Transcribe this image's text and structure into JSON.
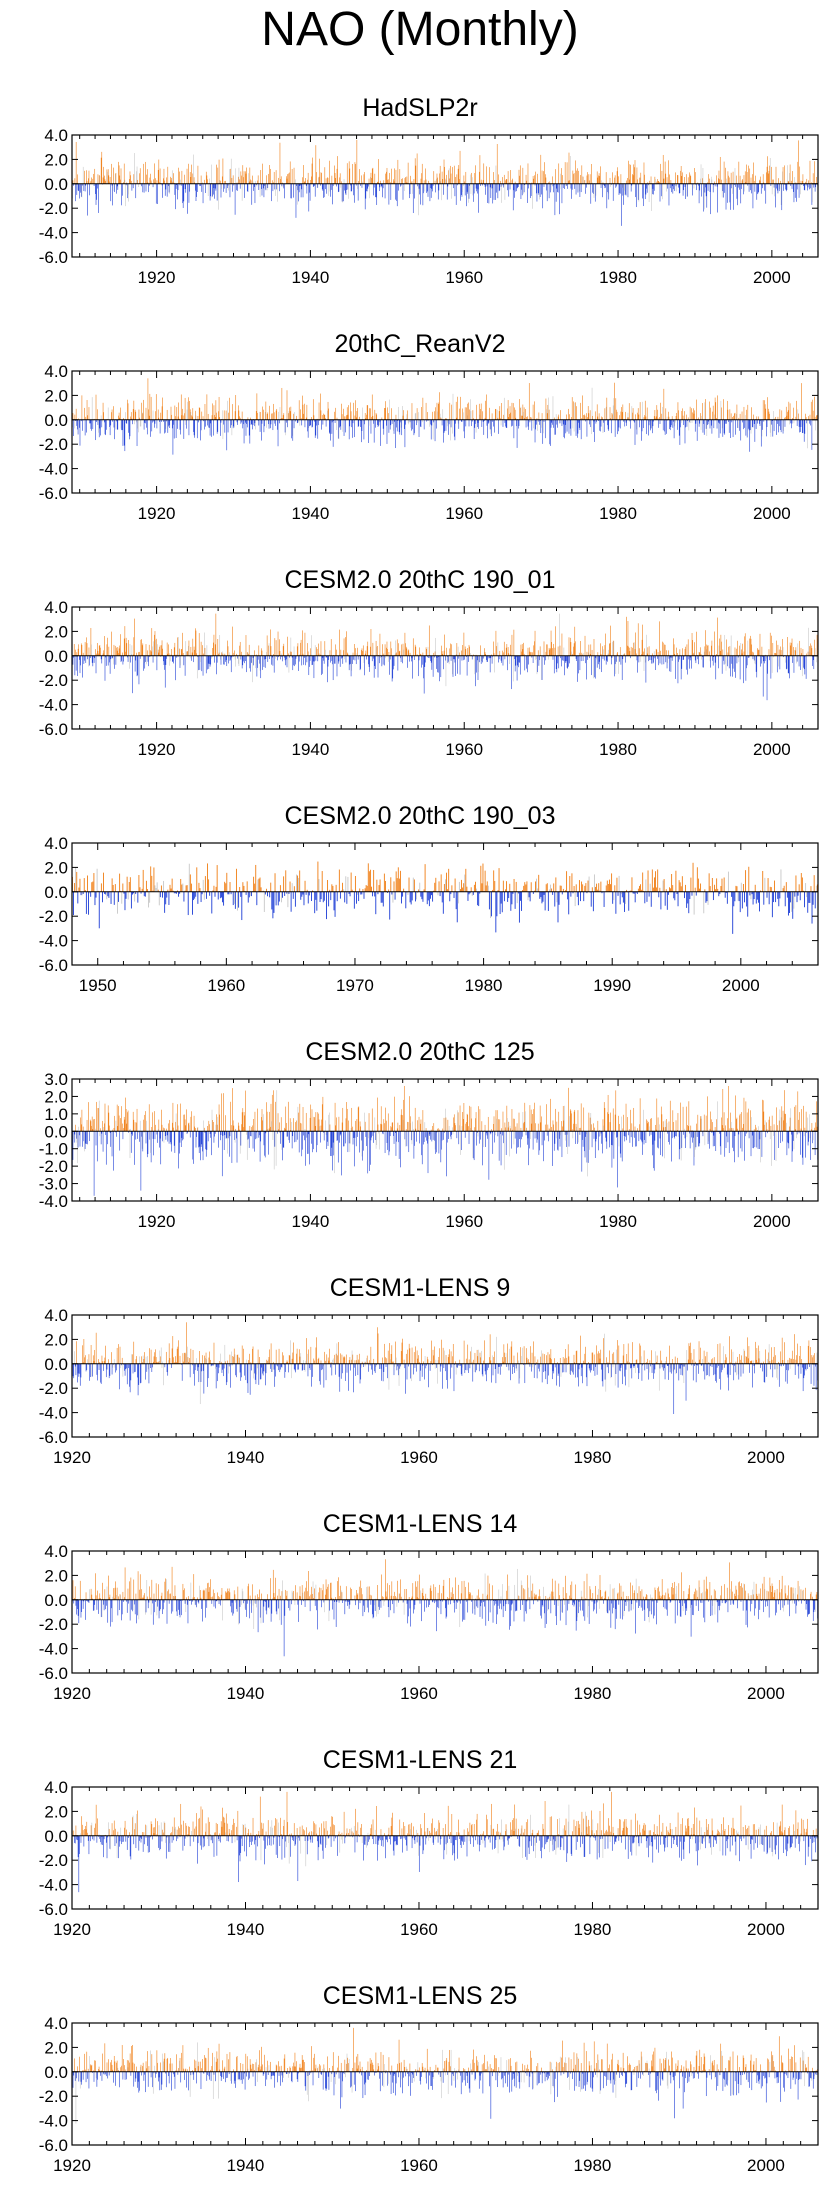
{
  "figure_title": "NAO (Monthly)",
  "colors": {
    "positive": "#f07f16",
    "negative": "#1f3fd6",
    "faint": "#c8c8c8",
    "axis": "#000000"
  },
  "chart_data": [
    {
      "type": "bar",
      "title": "HadSLP2r",
      "x_start": 1909,
      "x_end": 2006,
      "xticks": [
        1920,
        1940,
        1960,
        1980,
        2000
      ],
      "ylim": [
        -6,
        4
      ],
      "yticks": [
        4,
        2,
        0,
        -2,
        -4,
        -6
      ],
      "ytick_labels": [
        "4.0",
        "2.0",
        "0.0",
        "-2.0",
        "-4.0",
        "-6.0"
      ],
      "seed": 11
    },
    {
      "type": "bar",
      "title": "20thC_ReanV2",
      "x_start": 1909,
      "x_end": 2006,
      "xticks": [
        1920,
        1940,
        1960,
        1980,
        2000
      ],
      "ylim": [
        -6,
        4
      ],
      "yticks": [
        4,
        2,
        0,
        -2,
        -4,
        -6
      ],
      "ytick_labels": [
        "4.0",
        "2.0",
        "0.0",
        "-2.0",
        "-4.0",
        "-6.0"
      ],
      "seed": 23
    },
    {
      "type": "bar",
      "title": "CESM2.0 20thC 190_01",
      "x_start": 1909,
      "x_end": 2006,
      "xticks": [
        1920,
        1940,
        1960,
        1980,
        2000
      ],
      "ylim": [
        -6,
        4
      ],
      "yticks": [
        4,
        2,
        0,
        -2,
        -4,
        -6
      ],
      "ytick_labels": [
        "4.0",
        "2.0",
        "0.0",
        "-2.0",
        "-4.0",
        "-6.0"
      ],
      "seed": 37
    },
    {
      "type": "bar",
      "title": "CESM2.0 20thC 190_03",
      "x_start": 1948,
      "x_end": 2006,
      "xticks": [
        1950,
        1960,
        1970,
        1980,
        1990,
        2000
      ],
      "ylim": [
        -6,
        4
      ],
      "yticks": [
        4,
        2,
        0,
        -2,
        -4,
        -6
      ],
      "ytick_labels": [
        "4.0",
        "2.0",
        "0.0",
        "-2.0",
        "-4.0",
        "-6.0"
      ],
      "seed": 41
    },
    {
      "type": "bar",
      "title": "CESM2.0 20thC 125",
      "x_start": 1909,
      "x_end": 2006,
      "xticks": [
        1920,
        1940,
        1960,
        1980,
        2000
      ],
      "ylim": [
        -4,
        3
      ],
      "yticks": [
        3,
        2,
        1,
        0,
        -1,
        -2,
        -3,
        -4
      ],
      "ytick_labels": [
        "3.0",
        "2.0",
        "1.0",
        "0.0",
        "-1.0",
        "-2.0",
        "-3.0",
        "-4.0"
      ],
      "seed": 53
    },
    {
      "type": "bar",
      "title": "CESM1-LENS 9",
      "x_start": 1920,
      "x_end": 2006,
      "xticks": [
        1920,
        1940,
        1960,
        1980,
        2000
      ],
      "ylim": [
        -6,
        4
      ],
      "yticks": [
        4,
        2,
        0,
        -2,
        -4,
        -6
      ],
      "ytick_labels": [
        "4.0",
        "2.0",
        "0.0",
        "-2.0",
        "-4.0",
        "-6.0"
      ],
      "seed": 67
    },
    {
      "type": "bar",
      "title": "CESM1-LENS 14",
      "x_start": 1920,
      "x_end": 2006,
      "xticks": [
        1920,
        1940,
        1960,
        1980,
        2000
      ],
      "ylim": [
        -6,
        4
      ],
      "yticks": [
        4,
        2,
        0,
        -2,
        -4,
        -6
      ],
      "ytick_labels": [
        "4.0",
        "2.0",
        "0.0",
        "-2.0",
        "-4.0",
        "-6.0"
      ],
      "seed": 71
    },
    {
      "type": "bar",
      "title": "CESM1-LENS 21",
      "x_start": 1920,
      "x_end": 2006,
      "xticks": [
        1920,
        1940,
        1960,
        1980,
        2000
      ],
      "ylim": [
        -6,
        4
      ],
      "yticks": [
        4,
        2,
        0,
        -2,
        -4,
        -6
      ],
      "ytick_labels": [
        "4.0",
        "2.0",
        "0.0",
        "-2.0",
        "-4.0",
        "-6.0"
      ],
      "seed": 83
    },
    {
      "type": "bar",
      "title": "CESM1-LENS 25",
      "x_start": 1920,
      "x_end": 2006,
      "xticks": [
        1920,
        1940,
        1960,
        1980,
        2000
      ],
      "ylim": [
        -6,
        4
      ],
      "yticks": [
        4,
        2,
        0,
        -2,
        -4,
        -6
      ],
      "ytick_labels": [
        "4.0",
        "2.0",
        "0.0",
        "-2.0",
        "-4.0",
        "-6.0"
      ],
      "seed": 97
    }
  ]
}
